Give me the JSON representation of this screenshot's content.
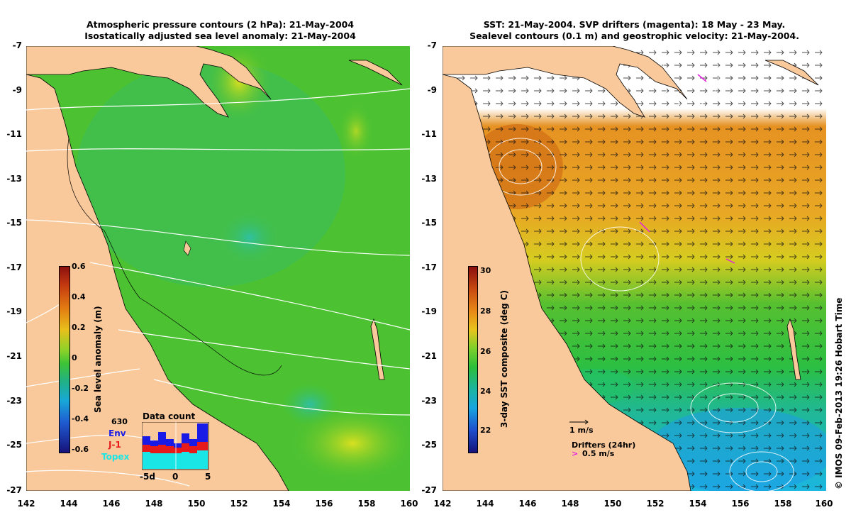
{
  "left_panel": {
    "title_line1": "Atmospheric pressure contours (2 hPa): 21-May-2004",
    "title_line2": "Isostatically adjusted sea level anomaly: 21-May-2004",
    "colorbar": {
      "title": "Sea level anomaly (m)",
      "ticks": [
        "0.6",
        "0.4",
        "0.2",
        "0",
        "-0.2",
        "-0.4",
        "-0.6"
      ]
    },
    "data_count": {
      "title": "Data count",
      "max_label": "630",
      "series": [
        "Env",
        "J-1",
        "Topex"
      ],
      "series_colors": [
        "#1a1ae6",
        "#e61a1a",
        "#1ae6e6"
      ],
      "x_labels": [
        "-5d",
        "0",
        "5"
      ]
    }
  },
  "right_panel": {
    "title_line1": "SST: 21-May-2004. SVP drifters (magenta): 18 May - 23 May.",
    "title_line2": "Sealevel contours (0.1 m) and geostrophic velocity: 21-May-2004.",
    "colorbar": {
      "title": "3-day SST composite (deg C)",
      "ticks": [
        "30",
        "28",
        "26",
        "24",
        "22"
      ]
    },
    "velocity_scale": "1 m/s",
    "drifters_label": "Drifters (24hr)",
    "drifter_speed": "0.5 m/s"
  },
  "y_ticks": [
    "-7",
    "-9",
    "-11",
    "-13",
    "-15",
    "-17",
    "-19",
    "-21",
    "-23",
    "-25",
    "-27"
  ],
  "x_ticks": [
    "142",
    "144",
    "146",
    "148",
    "150",
    "152",
    "154",
    "156",
    "158",
    "160"
  ],
  "copyright": "© IMOS 09-Feb-2013 19:26 Hobart Time",
  "colors": {
    "land": "#f9c99b",
    "ocean_green": "#3ec436",
    "sst_orange": "#e89a1e",
    "sst_yellow": "#e8c81e",
    "sst_cyan": "#1ebde8",
    "magenta": "#e020e0"
  }
}
